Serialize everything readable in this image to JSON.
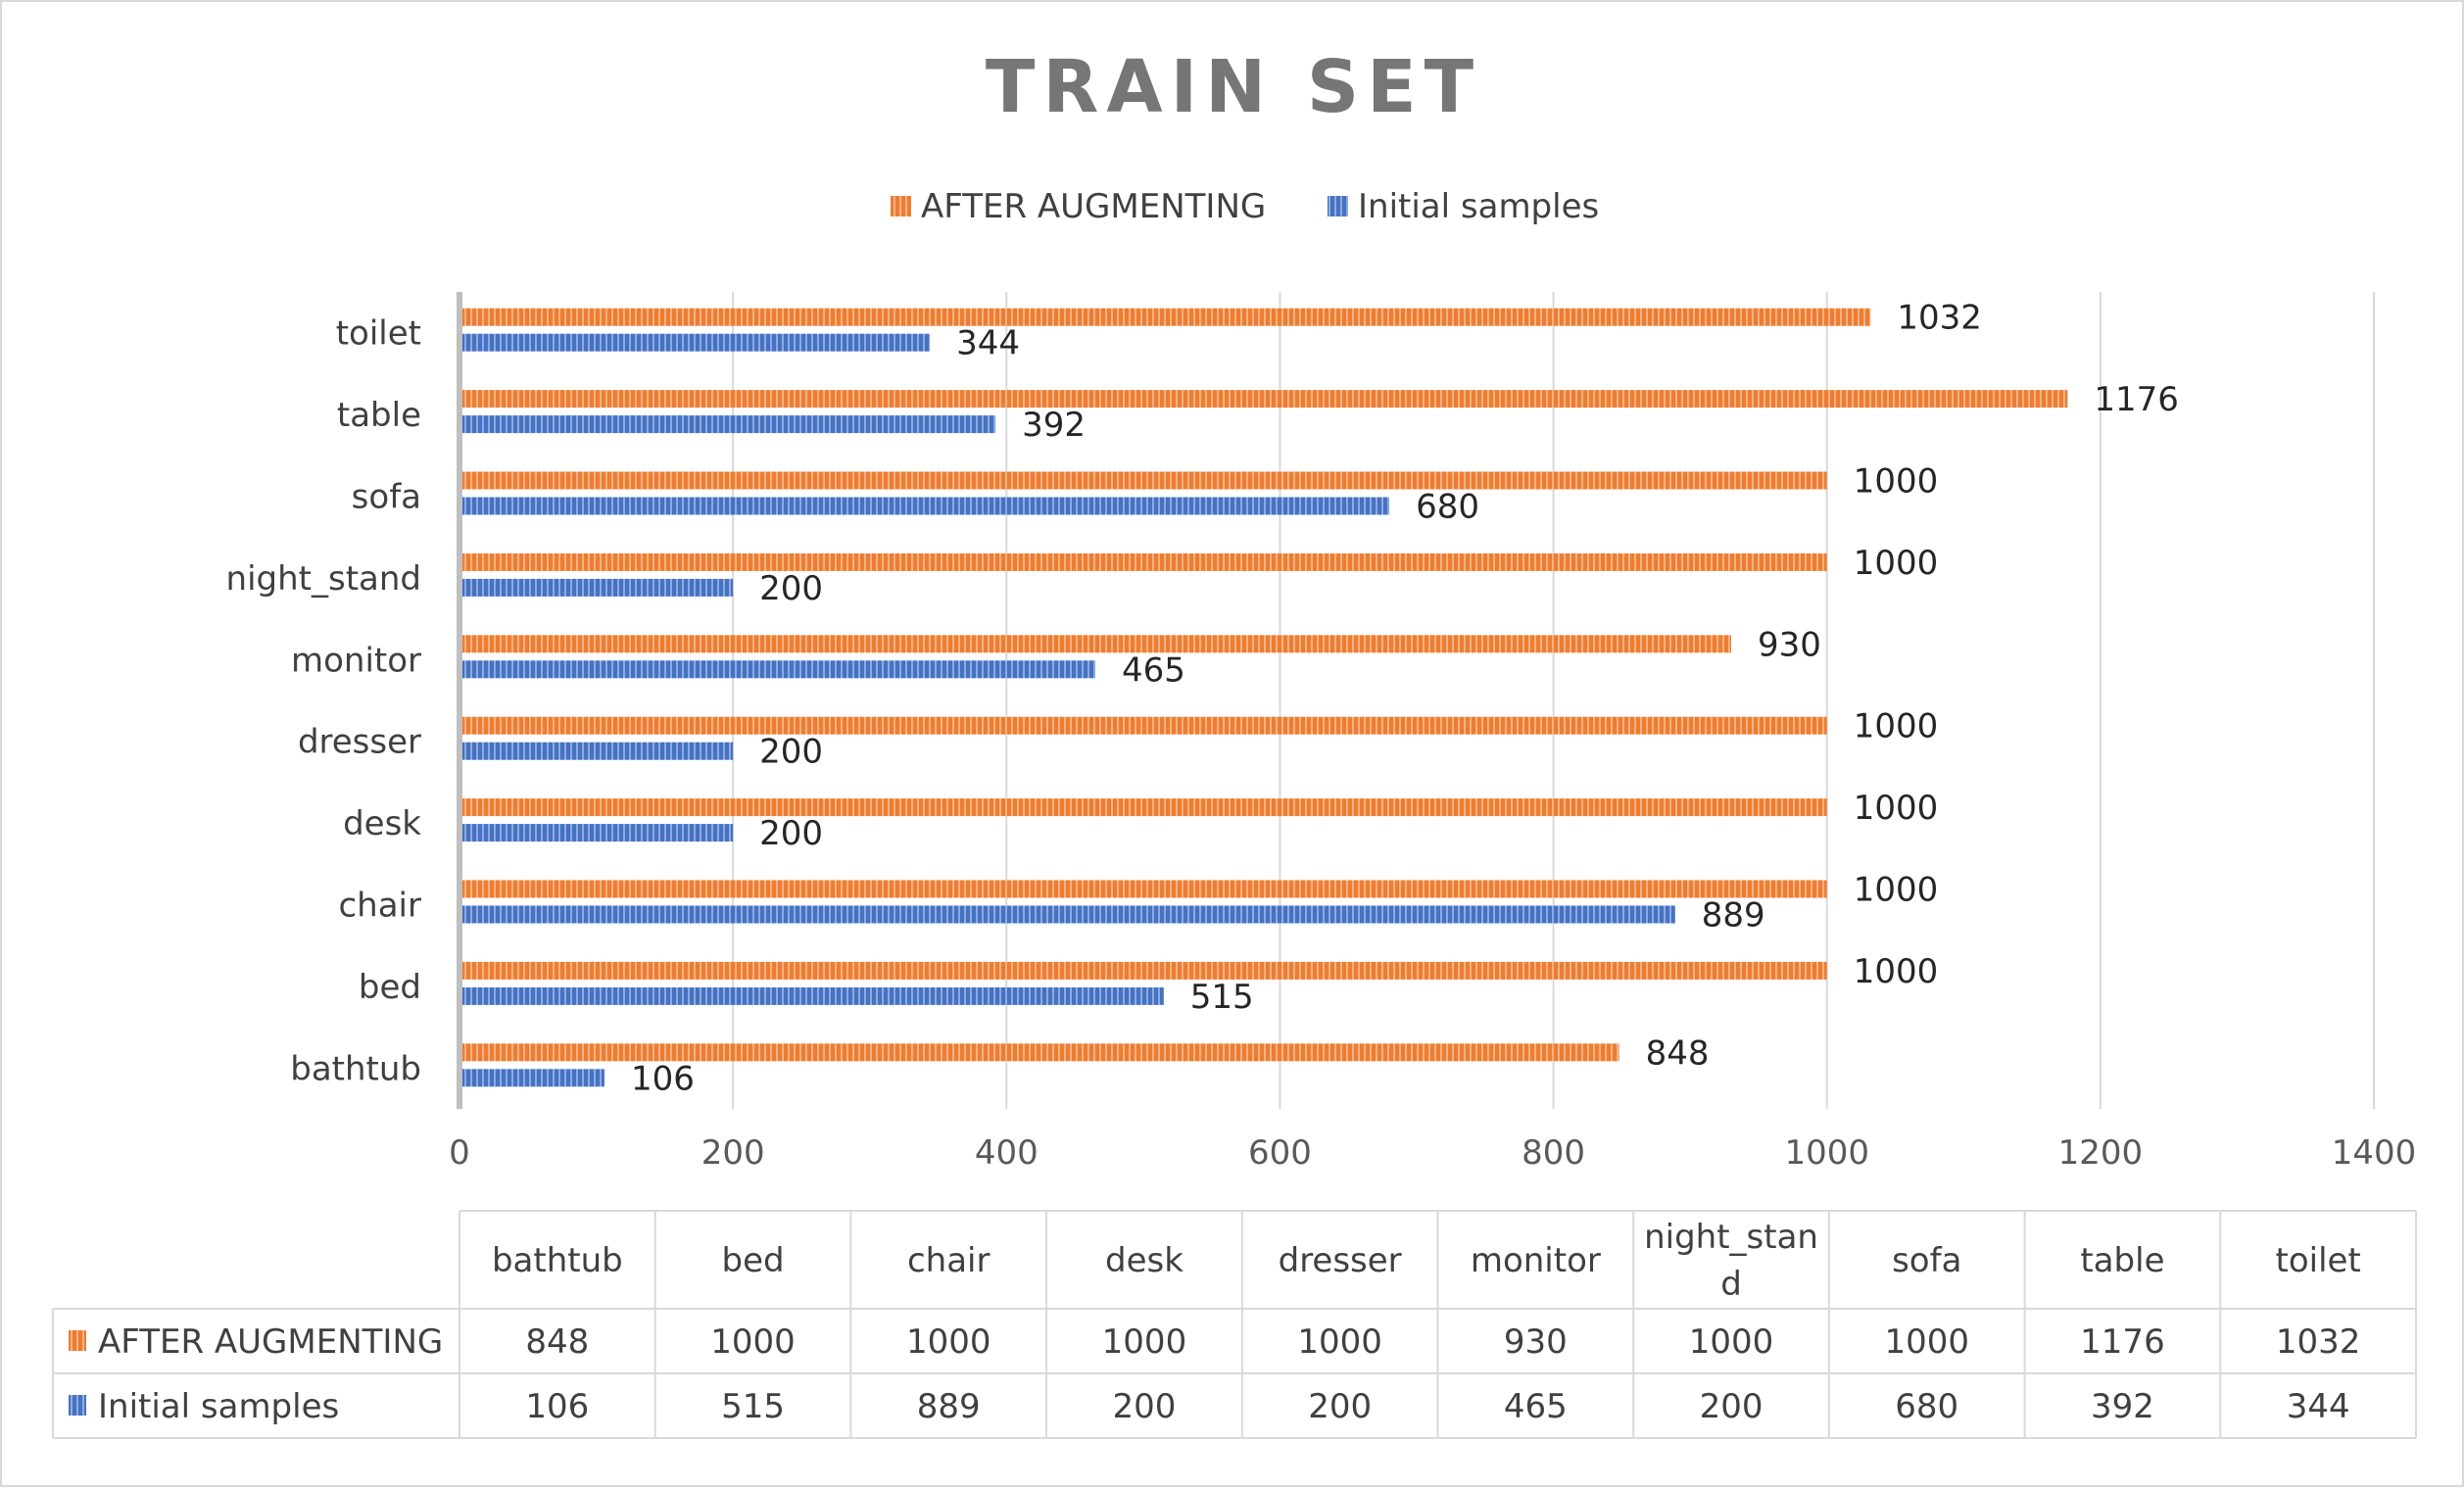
{
  "chart_data": {
    "type": "bar",
    "orientation": "horizontal",
    "title": "TRAIN SET",
    "categories": [
      "bathtub",
      "bed",
      "chair",
      "desk",
      "dresser",
      "monitor",
      "night_stand",
      "sofa",
      "table",
      "toilet"
    ],
    "series": [
      {
        "name": "AFTER AUGMENTING",
        "values": [
          848,
          1000,
          1000,
          1000,
          1000,
          930,
          1000,
          1000,
          1176,
          1032
        ],
        "color": "#ed7d31"
      },
      {
        "name": "Initial samples",
        "values": [
          106,
          515,
          889,
          200,
          200,
          465,
          200,
          680,
          392,
          344
        ],
        "color": "#4472c4"
      }
    ],
    "xlim": [
      0,
      1400
    ],
    "x_ticks": [
      0,
      200,
      400,
      600,
      800,
      1000,
      1200,
      1400
    ],
    "grid": true,
    "legend_position": "top",
    "data_table": {
      "header": [
        "bathtub",
        "bed",
        "chair",
        "desk",
        "dresser",
        "monitor",
        "night_stand",
        "sofa",
        "table",
        "toilet"
      ]
    }
  }
}
